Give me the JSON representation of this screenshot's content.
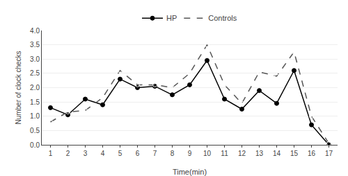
{
  "chart_data": {
    "type": "line",
    "xlabel": "Time(min)",
    "ylabel": "Number of clock checks",
    "x": [
      1,
      2,
      3,
      4,
      5,
      6,
      7,
      8,
      9,
      10,
      11,
      12,
      13,
      14,
      15,
      16,
      17
    ],
    "series": [
      {
        "name": "HP",
        "color": "#000000",
        "marker": "circle",
        "line_style": "solid",
        "values": [
          1.3,
          1.05,
          1.6,
          1.4,
          2.3,
          2.0,
          2.05,
          1.75,
          2.1,
          2.95,
          1.6,
          1.25,
          1.9,
          1.45,
          2.6,
          0.7,
          0.0
        ]
      },
      {
        "name": "Controls",
        "color": "#555555",
        "marker": "circle-open",
        "line_style": "dash",
        "values": [
          0.8,
          1.15,
          1.2,
          1.65,
          2.6,
          2.1,
          2.1,
          2.0,
          2.5,
          3.5,
          2.1,
          1.45,
          2.55,
          2.4,
          3.25,
          1.0,
          0.05
        ]
      }
    ],
    "xlim": [
      0.5,
      17.5
    ],
    "xticks": [
      1,
      2,
      3,
      4,
      5,
      6,
      7,
      8,
      9,
      10,
      11,
      12,
      13,
      14,
      15,
      16,
      17
    ],
    "ylim": [
      0.0,
      4.0
    ],
    "yticks": [
      {
        "value": 0.0,
        "label": "0.0"
      },
      0.5,
      {
        "value": 1.0,
        "label": "1.0"
      },
      1.5,
      {
        "value": 2.0,
        "label": "2.0"
      },
      2.5,
      {
        "value": 3.0,
        "label": "3.0"
      },
      3.5,
      {
        "value": 4.0,
        "label": "4.0"
      }
    ],
    "grid": "y",
    "legend": "top"
  }
}
